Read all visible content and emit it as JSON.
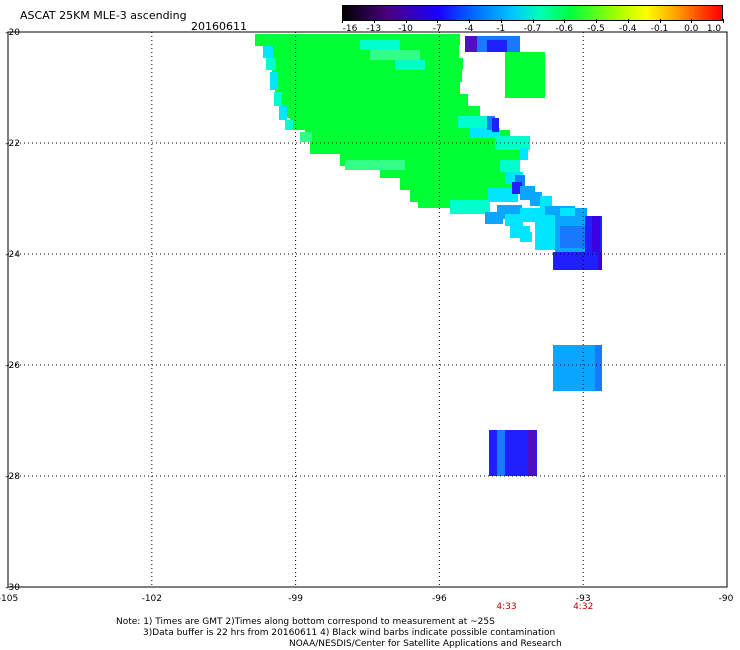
{
  "header": {
    "title": "ASCAT 25KM MLE-3 ascending",
    "date": "20160611"
  },
  "colorbar": {
    "labels": [
      "-16",
      "-13",
      "-10",
      "-7",
      "-4",
      "-1",
      "-0.7",
      "-0.6",
      "-0.5",
      "-0.4",
      "-0.1",
      "0.0",
      "1.0"
    ],
    "colors": [
      "#000000",
      "#4b0082",
      "#1a00ff",
      "#0064ff",
      "#00c8ff",
      "#00ffb4",
      "#00ff3c",
      "#a0ff00",
      "#ffff00",
      "#ffa000",
      "#ff3c00",
      "#ff0000"
    ]
  },
  "axes": {
    "lon_ticks": [
      "-105",
      "-102",
      "-99",
      "-96",
      "-93",
      "-90"
    ],
    "lat_ticks": [
      "-20",
      "-22",
      "-24",
      "-26",
      "-28",
      "-30"
    ]
  },
  "time_labels": [
    {
      "text": "4:33",
      "lon": -94.6
    },
    {
      "text": "4:32",
      "lon": -93.0
    }
  ],
  "swath_colors": {
    "green": "#00ff33",
    "light_green": "#33ff88",
    "cyan": "#00ffcc",
    "aqua": "#00e6ff",
    "sky": "#0aa6ff",
    "blue": "#1a7aff",
    "royal": "#2020ff",
    "indigo": "#3a00e0",
    "purple": "#5010c0"
  },
  "notes": {
    "line1": "Note: 1) Times are GMT 2)Times along bottom correspond to measurement at ~25S",
    "line2": "3)Data buffer is 22 hrs from 20160611 4) Black wind barbs indicate possible contamination",
    "line3": "NOAA/NESDIS/Center for Satellite Applications and Research"
  }
}
